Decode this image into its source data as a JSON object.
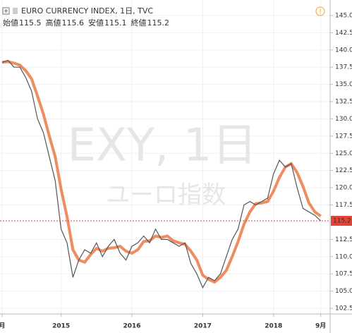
{
  "header": {
    "title": "EURO CURRENCY INDEX, 1日, TVC",
    "ohlc": [
      {
        "label": "始値",
        "value": 115.5
      },
      {
        "label": "高値",
        "value": 115.6
      },
      {
        "label": "安値",
        "value": 115.1
      },
      {
        "label": "終値",
        "value": 115.2
      }
    ]
  },
  "watermark": {
    "symbol": "EXY, 1日",
    "name": "ユーロ指数"
  },
  "chart_data": {
    "type": "line",
    "x": [
      "2014-03",
      "2014-04",
      "2014-05",
      "2014-06",
      "2014-07",
      "2014-08",
      "2014-09",
      "2014-10",
      "2014-11",
      "2014-12",
      "2015-01",
      "2015-02",
      "2015-03",
      "2015-04",
      "2015-05",
      "2015-06",
      "2015-07",
      "2015-08",
      "2015-09",
      "2015-10",
      "2015-11",
      "2015-12",
      "2016-01",
      "2016-02",
      "2016-03",
      "2016-04",
      "2016-05",
      "2016-06",
      "2016-07",
      "2016-08",
      "2016-09",
      "2016-10",
      "2016-11",
      "2016-12",
      "2017-01",
      "2017-02",
      "2017-03",
      "2017-04",
      "2017-05",
      "2017-06",
      "2017-07",
      "2017-08",
      "2017-09",
      "2017-10",
      "2017-11",
      "2017-12",
      "2018-01",
      "2018-02",
      "2018-03",
      "2018-04",
      "2018-05",
      "2018-06",
      "2018-07",
      "2018-08",
      "2018-09"
    ],
    "series": [
      {
        "color": "#555555",
        "values": [
          138.2,
          138.5,
          137.5,
          137.5,
          136,
          134,
          130,
          128,
          124.5,
          121,
          114,
          112,
          107,
          109.5,
          111,
          110.5,
          112,
          110,
          111.5,
          112.5,
          110.5,
          109.5,
          111.5,
          112,
          113,
          112,
          114,
          112.5,
          112.5,
          112,
          111.5,
          112,
          109,
          107.5,
          105.5,
          107,
          106.5,
          107.5,
          110,
          112.5,
          114,
          117.5,
          118,
          117.5,
          118,
          118.5,
          122,
          124,
          123,
          123.5,
          120,
          117,
          116.5,
          116,
          115.2
        ]
      },
      {
        "color": "#e8703a",
        "values": [
          138.2,
          138.3,
          138.1,
          137.8,
          137,
          135.8,
          133.3,
          130.7,
          127.5,
          124.5,
          119.8,
          115.8,
          111,
          109.5,
          109.2,
          110.3,
          111.2,
          110.8,
          111.2,
          111.3,
          111.5,
          110.8,
          110.5,
          111,
          112.2,
          112.3,
          113,
          112.8,
          113,
          112.3,
          112,
          111.8,
          110.8,
          109.5,
          107.3,
          106.7,
          106.3,
          107,
          108,
          110,
          112.2,
          114.7,
          116.5,
          117.7,
          117.8,
          118,
          119.5,
          121.5,
          123,
          123.5,
          122.2,
          120.2,
          117.8,
          116.5,
          115.9
        ]
      }
    ],
    "last_color": "#e0443a",
    "xlim": [
      "2014-03",
      "2018-10"
    ],
    "xticks": [
      {
        "value": "2014-03",
        "label": "月"
      },
      {
        "value": "2015-01",
        "label": "2015"
      },
      {
        "value": "2016-01",
        "label": "2016"
      },
      {
        "value": "2017-01",
        "label": "2017"
      },
      {
        "value": "2018-01",
        "label": "2018"
      },
      {
        "value": "2018-09",
        "label": "9月"
      }
    ],
    "ylim": [
      102.5,
      145
    ],
    "yticks": [
      102.5,
      {
        "value": 105,
        "label": "105.0"
      },
      107.5,
      {
        "value": 110,
        "label": "110.0"
      },
      112.5,
      {
        "value": 115,
        "label": "115.0"
      },
      117.5,
      {
        "value": 120,
        "label": "120.0"
      },
      122.5,
      {
        "value": 125,
        "label": "125.0"
      },
      127.5,
      {
        "value": 130,
        "label": "130.0"
      },
      132.5,
      {
        "value": 135,
        "label": "135.0"
      },
      137.5,
      {
        "value": 140,
        "label": "140.0"
      },
      142.5,
      {
        "value": 145,
        "label": "145.0"
      }
    ],
    "grid": true
  }
}
